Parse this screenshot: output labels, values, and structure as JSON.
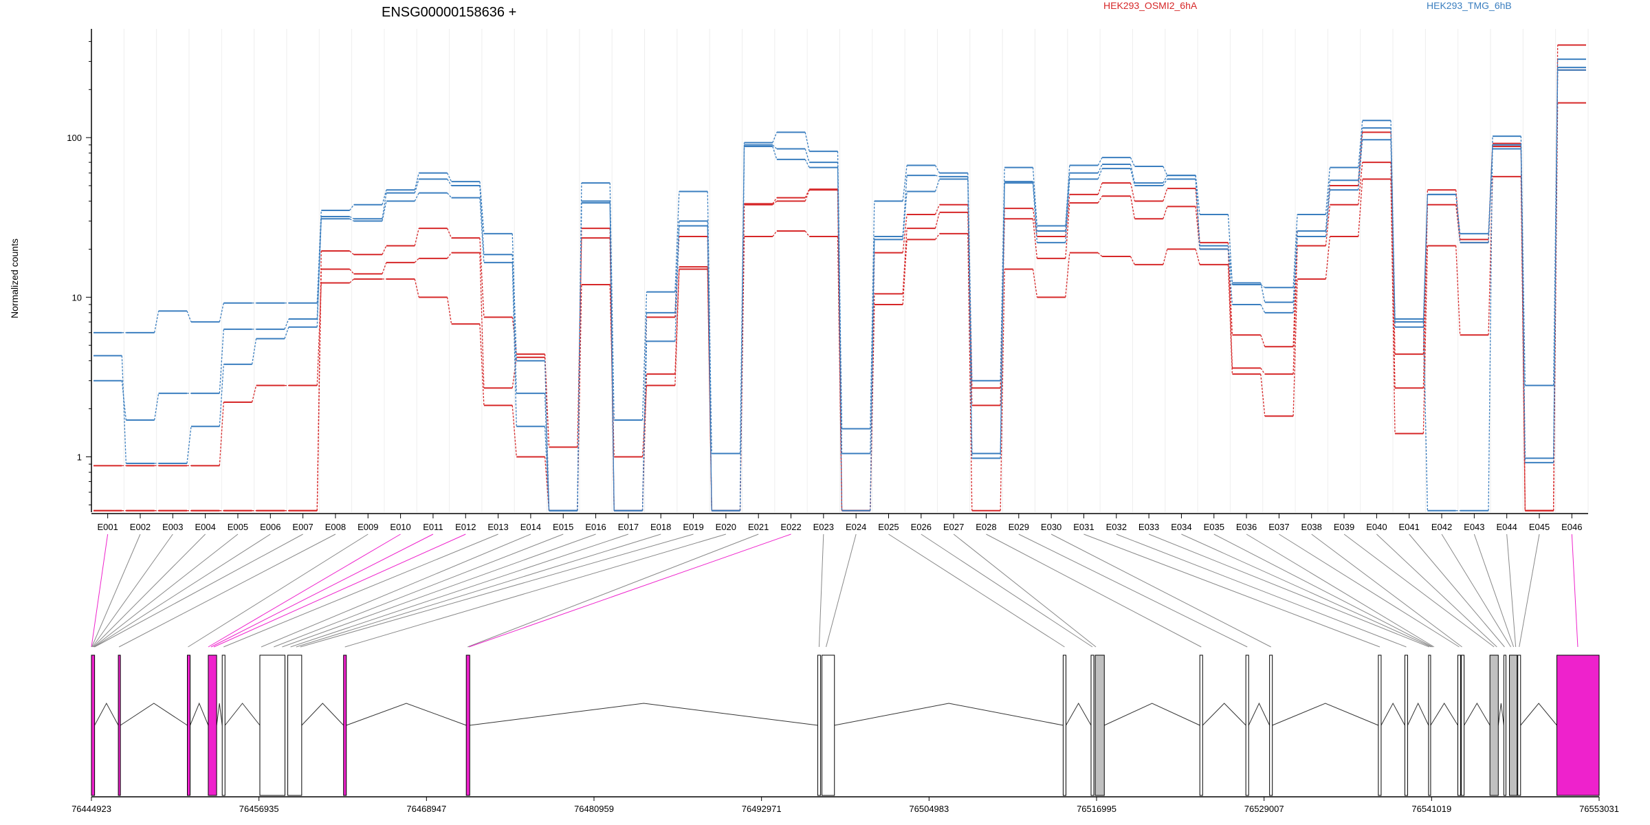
{
  "chart_data": {
    "type": "line",
    "title": "ENSG00000158636 +",
    "ylabel": "Normalized counts",
    "yscale": "log",
    "ylim": [
      0.45,
      480
    ],
    "yticks": [
      {
        "value": 1,
        "label": "1"
      },
      {
        "value": 10,
        "label": "10"
      },
      {
        "value": 100,
        "label": "100"
      }
    ],
    "categories": [
      "E001",
      "E002",
      "E003",
      "E004",
      "E005",
      "E006",
      "E007",
      "E008",
      "E009",
      "E010",
      "E011",
      "E012",
      "E013",
      "E014",
      "E015",
      "E016",
      "E017",
      "E018",
      "E019",
      "E020",
      "E021",
      "E022",
      "E023",
      "E024",
      "E025",
      "E026",
      "E027",
      "E028",
      "E029",
      "E030",
      "E031",
      "E032",
      "E033",
      "E034",
      "E035",
      "E036",
      "E037",
      "E038",
      "E039",
      "E040",
      "E041",
      "E042",
      "E043",
      "E044",
      "E045",
      "E046"
    ],
    "legend": [
      {
        "name": "HEK293_OSMI2_6hA",
        "color": "#d62728"
      },
      {
        "name": "HEK293_TMG_6hB",
        "color": "#3a7ebf"
      }
    ],
    "series": [
      {
        "group": "HEK293_OSMI2_6hA",
        "color": "#d62728",
        "values": [
          0.88,
          0.88,
          0.88,
          0.88,
          2.2,
          2.8,
          2.8,
          12.3,
          13.0,
          13.0,
          10.0,
          6.8,
          2.1,
          1.0,
          0.46,
          12.0,
          1.0,
          2.8,
          15.0,
          0.46,
          24.0,
          26.0,
          24.0,
          0.46,
          9.0,
          23.0,
          25.0,
          0.46,
          15.0,
          10.0,
          19.0,
          18.0,
          16.0,
          20.0,
          16.0,
          3.3,
          1.8,
          13.0,
          24.0,
          55.0,
          1.4,
          21.0,
          5.8,
          57.0,
          0.46,
          165.0
        ]
      },
      {
        "group": "HEK293_OSMI2_6hA",
        "color": "#d62728",
        "values": [
          0.46,
          0.46,
          0.46,
          0.46,
          0.46,
          0.46,
          0.46,
          15.0,
          14.0,
          16.5,
          17.5,
          19.0,
          2.7,
          4.2,
          0.46,
          27.0,
          0.46,
          3.3,
          15.5,
          0.46,
          38.0,
          40.0,
          47.0,
          0.46,
          10.5,
          27.0,
          34.0,
          2.1,
          31.0,
          17.5,
          39.0,
          43.0,
          31.0,
          37.0,
          20.0,
          3.6,
          3.3,
          21.0,
          38.0,
          70.0,
          2.7,
          38.0,
          22.0,
          88.0,
          0.46,
          265.0
        ]
      },
      {
        "group": "HEK293_OSMI2_6hA",
        "color": "#d62728",
        "values": [
          0.46,
          0.46,
          0.46,
          0.46,
          0.46,
          0.46,
          0.46,
          19.5,
          18.5,
          21.0,
          27.0,
          23.5,
          7.5,
          4.4,
          1.15,
          23.5,
          0.46,
          7.5,
          24.0,
          0.46,
          38.5,
          42.0,
          47.5,
          0.46,
          19.0,
          33.0,
          38.0,
          2.7,
          36.0,
          24.0,
          44.0,
          52.0,
          40.0,
          48.0,
          22.0,
          5.8,
          4.9,
          26.0,
          50.0,
          108.0,
          4.4,
          47.0,
          23.0,
          92.0,
          0.46,
          380.0
        ]
      },
      {
        "group": "HEK293_TMG_6hB",
        "color": "#3a7ebf",
        "values": [
          6.0,
          6.0,
          8.2,
          7.0,
          9.2,
          9.2,
          9.2,
          35.0,
          38.0,
          47.0,
          60.0,
          53.0,
          25.0,
          4.0,
          0.46,
          52.0,
          1.7,
          10.8,
          46.0,
          1.05,
          93.0,
          108.0,
          82.0,
          1.5,
          40.0,
          67.0,
          60.0,
          3.0,
          65.0,
          28.0,
          67.0,
          75.0,
          66.0,
          58.0,
          33.0,
          12.0,
          11.5,
          33.0,
          65.0,
          128.0,
          7.3,
          0.46,
          0.46,
          102.0,
          2.8,
          310.0
        ]
      },
      {
        "group": "HEK293_TMG_6hB",
        "color": "#3a7ebf",
        "values": [
          3.0,
          1.7,
          2.5,
          2.5,
          6.3,
          6.3,
          7.3,
          32.0,
          31.0,
          45.0,
          55.0,
          50.0,
          18.5,
          2.5,
          0.46,
          40.0,
          0.46,
          8.0,
          30.0,
          0.46,
          90.0,
          85.0,
          70.0,
          1.05,
          24.0,
          58.0,
          57.0,
          1.05,
          53.0,
          26.0,
          60.0,
          68.0,
          52.0,
          58.0,
          21.0,
          12.3,
          9.3,
          26.0,
          54.0,
          115.0,
          7.0,
          44.0,
          25.0,
          90.0,
          0.98,
          275.0
        ]
      },
      {
        "group": "HEK293_TMG_6hB",
        "color": "#3a7ebf",
        "values": [
          4.3,
          0.91,
          0.91,
          1.55,
          3.8,
          5.5,
          6.5,
          31.0,
          30.0,
          40.0,
          45.0,
          42.0,
          16.5,
          1.55,
          0.46,
          39.0,
          0.46,
          5.3,
          28.0,
          0.46,
          88.0,
          73.0,
          65.0,
          0.46,
          23.0,
          46.0,
          55.0,
          0.98,
          52.0,
          22.0,
          55.0,
          64.0,
          50.0,
          55.0,
          20.0,
          9.0,
          8.0,
          24.0,
          47.0,
          97.0,
          6.5,
          44.0,
          22.0,
          85.0,
          0.92,
          265.0
        ]
      }
    ],
    "genome": {
      "coord_ticks": [
        "76444923",
        "76456935",
        "76468947",
        "76480959",
        "76492971",
        "76504983",
        "76516995",
        "76529007",
        "76541019",
        "76553031"
      ],
      "range": [
        76444923,
        76553031
      ],
      "highlight_color": "#ee22cc",
      "gray_color": "#c0c0c0",
      "exons": [
        {
          "start": 76444923,
          "end": 76445150,
          "fill": "magenta"
        },
        {
          "start": 76446850,
          "end": 76447000,
          "fill": "magenta"
        },
        {
          "start": 76451800,
          "end": 76452000,
          "fill": "magenta"
        },
        {
          "start": 76453300,
          "end": 76453900,
          "fill": "magenta"
        },
        {
          "start": 76454300,
          "end": 76454500,
          "fill": "white"
        },
        {
          "start": 76457000,
          "end": 76458800,
          "fill": "white"
        },
        {
          "start": 76459000,
          "end": 76460000,
          "fill": "white"
        },
        {
          "start": 76463000,
          "end": 76463200,
          "fill": "magenta"
        },
        {
          "start": 76471800,
          "end": 76472050,
          "fill": "magenta"
        },
        {
          "start": 76497000,
          "end": 76497200,
          "fill": "white"
        },
        {
          "start": 76497300,
          "end": 76498200,
          "fill": "white"
        },
        {
          "start": 76514600,
          "end": 76514800,
          "fill": "white"
        },
        {
          "start": 76516600,
          "end": 76516800,
          "fill": "white"
        },
        {
          "start": 76516900,
          "end": 76517550,
          "fill": "gray"
        },
        {
          "start": 76524400,
          "end": 76524600,
          "fill": "white"
        },
        {
          "start": 76527700,
          "end": 76527900,
          "fill": "white"
        },
        {
          "start": 76529400,
          "end": 76529600,
          "fill": "white"
        },
        {
          "start": 76537200,
          "end": 76537400,
          "fill": "white"
        },
        {
          "start": 76539100,
          "end": 76539300,
          "fill": "white"
        },
        {
          "start": 76540800,
          "end": 76540950,
          "fill": "white"
        },
        {
          "start": 76542900,
          "end": 76543100,
          "fill": "white"
        },
        {
          "start": 76543150,
          "end": 76543350,
          "fill": "white"
        },
        {
          "start": 76545200,
          "end": 76545800,
          "fill": "gray"
        },
        {
          "start": 76546200,
          "end": 76546350,
          "fill": "white"
        },
        {
          "start": 76546600,
          "end": 76547150,
          "fill": "gray"
        },
        {
          "start": 76547200,
          "end": 76547400,
          "fill": "white"
        },
        {
          "start": 76550000,
          "end": 76553031,
          "fill": "magenta"
        }
      ],
      "connector_targets": [
        76444923,
        76444950,
        76445000,
        76445050,
        76445100,
        76445130,
        76445150,
        76446900,
        76451850,
        76453300,
        76453500,
        76453700,
        76454400,
        76457100,
        76458000,
        76458600,
        76459200,
        76459600,
        76459900,
        76463100,
        76471900,
        76472000,
        76497100,
        76497600,
        76514700,
        76516700,
        76516950,
        76524500,
        76527800,
        76529500,
        76537300,
        76539200,
        76540850,
        76541000,
        76541100,
        76541200,
        76543000,
        76543200,
        76545500,
        76545700,
        76546250,
        76546700,
        76546900,
        76547050,
        76547300,
        76551500
      ],
      "highlighted_exons": [
        "E001",
        "E010",
        "E011",
        "E012",
        "E022",
        "E046"
      ]
    }
  }
}
